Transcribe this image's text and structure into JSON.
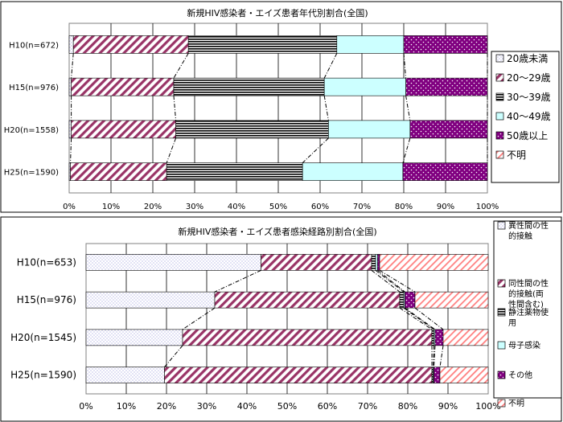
{
  "chart_data": [
    {
      "type": "bar",
      "orientation": "horizontal",
      "stacked": true,
      "percent": true,
      "title": "新規HIV感染者・エイズ患者年代別割合(全国)",
      "categories": [
        "H10(n=672)",
        "H15(n=976)",
        "H20(n=1558)",
        "H25(n=1590)"
      ],
      "xticks": [
        "0%",
        "10%",
        "20%",
        "30%",
        "40%",
        "50%",
        "60%",
        "70%",
        "80%",
        "90%",
        "100%"
      ],
      "xlim": [
        0,
        100
      ],
      "grid": true,
      "legend_position": "right",
      "series": [
        {
          "name": "20歳未満",
          "values": [
            1,
            0.5,
            0.5,
            0.3
          ],
          "color": "#ccccff",
          "pattern": "dots"
        },
        {
          "name": "20～29歳",
          "values": [
            27.5,
            24.5,
            25,
            23
          ],
          "color": "#993366",
          "pattern": "diagonal"
        },
        {
          "name": "30～39歳",
          "values": [
            35.5,
            36,
            36.5,
            32.5
          ],
          "color": "#000000",
          "pattern": "horizontal"
        },
        {
          "name": "40～49歳",
          "values": [
            16,
            19.5,
            19.5,
            24
          ],
          "color": "#ccffff",
          "pattern": "solid"
        },
        {
          "name": "50歳以上",
          "values": [
            20,
            19.5,
            18.5,
            20.2
          ],
          "color": "#800080",
          "pattern": "dots-light"
        },
        {
          "name": "不明",
          "values": [
            0,
            0,
            0,
            0
          ],
          "color": "#ff8080",
          "pattern": "diagonal-light"
        }
      ]
    },
    {
      "type": "bar",
      "orientation": "horizontal",
      "stacked": true,
      "percent": true,
      "title": "新規HIV感染者・エイズ患者感染経路別割合(全国)",
      "categories": [
        "H10(n=653)",
        "H15(n=976)",
        "H20(n=1545)",
        "H25(n=1590)"
      ],
      "xticks": [
        "0%",
        "10%",
        "20%",
        "30%",
        "40%",
        "50%",
        "60%",
        "70%",
        "80%",
        "90%",
        "100%"
      ],
      "xlim": [
        0,
        100
      ],
      "grid": true,
      "legend_position": "right",
      "series": [
        {
          "name": "異性間の性的接触",
          "values": [
            43.5,
            32,
            24,
            19.5
          ],
          "color": "#ccccff",
          "pattern": "dots"
        },
        {
          "name": "同性間の性的接触(両性間含む)",
          "values": [
            27.5,
            46,
            62,
            66.5
          ],
          "color": "#993366",
          "pattern": "diagonal"
        },
        {
          "name": "静注薬物使用",
          "values": [
            1,
            1,
            0.5,
            0.3
          ],
          "color": "#000000",
          "pattern": "horizontal"
        },
        {
          "name": "母子感染",
          "values": [
            0.5,
            0.3,
            0.3,
            0.2
          ],
          "color": "#ccffff",
          "pattern": "solid"
        },
        {
          "name": "その他",
          "values": [
            0.5,
            2.5,
            2,
            1.5
          ],
          "color": "#800080",
          "pattern": "dots-light"
        },
        {
          "name": "不明",
          "values": [
            27,
            18.2,
            11.2,
            12
          ],
          "color": "#ff8080",
          "pattern": "diagonal-light"
        }
      ]
    }
  ]
}
